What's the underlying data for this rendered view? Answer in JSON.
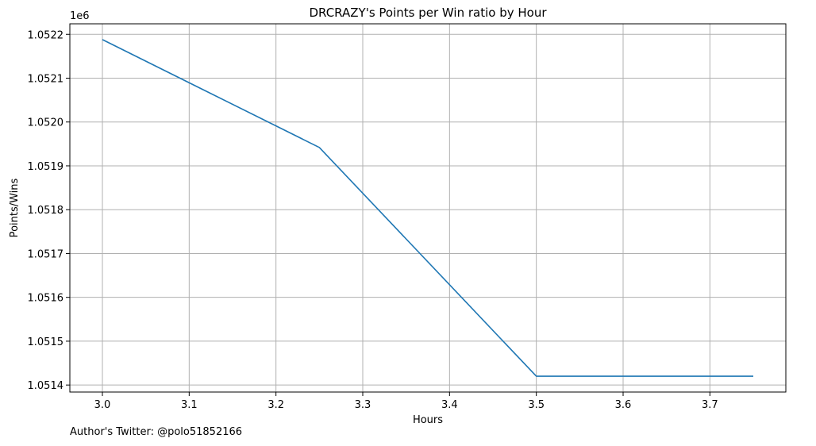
{
  "chart_data": {
    "type": "line",
    "title": "DRCRAZY's Points per Win ratio by Hour",
    "xlabel": "Hours",
    "ylabel": "Points/Wins",
    "y_offset_label": "1e6",
    "grid": true,
    "xlim": [
      2.9625,
      3.7875
    ],
    "ylim": [
      1.051384,
      1.052224
    ],
    "x_ticks": [
      3.0,
      3.1,
      3.2,
      3.3,
      3.4,
      3.5,
      3.6,
      3.7
    ],
    "x_tick_labels": [
      "3.0",
      "3.1",
      "3.2",
      "3.3",
      "3.4",
      "3.5",
      "3.6",
      "3.7"
    ],
    "y_ticks": [
      1.0514,
      1.0515,
      1.0516,
      1.0517,
      1.0518,
      1.0519,
      1.052,
      1.0521,
      1.0522
    ],
    "y_tick_labels": [
      "1.0514",
      "1.0515",
      "1.0516",
      "1.0517",
      "1.0518",
      "1.0519",
      "1.0520",
      "1.0521",
      "1.0522"
    ],
    "series": [
      {
        "color": "#1f77b4",
        "x": [
          3.0,
          3.25,
          3.5,
          3.75
        ],
        "y": [
          1.052188,
          1.051942,
          1.05142,
          1.05142
        ]
      }
    ]
  },
  "footer": {
    "text": "Author's Twitter: @polo51852166"
  }
}
